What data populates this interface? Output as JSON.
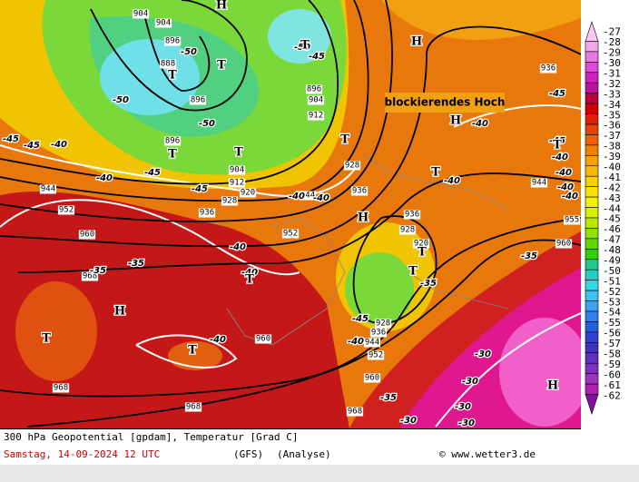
{
  "map": {
    "annotation": "blockierendes Hoch",
    "geopotential_labels": [
      904,
      904,
      896,
      888,
      896,
      896,
      904,
      912,
      920,
      928,
      936,
      944,
      952,
      960,
      968,
      968,
      968,
      960,
      952,
      944,
      936,
      928,
      920,
      928,
      936,
      928,
      936,
      944,
      952,
      960,
      968,
      960,
      955,
      944,
      936,
      896,
      904,
      912
    ],
    "temperature_labels": [
      -50,
      -50,
      -45,
      -50,
      -50,
      -45,
      -45,
      -40,
      -45,
      -40,
      -45,
      -40,
      -40,
      -40,
      -40,
      -35,
      -35,
      -40,
      -40,
      -45,
      -35,
      -35,
      -35,
      -30,
      -30,
      -30,
      -30,
      -30,
      -40,
      -40,
      -40,
      -40,
      -40,
      -45,
      -45,
      -40
    ],
    "pressure_centers": [
      "H",
      "H",
      "H",
      "H",
      "H",
      "H",
      "T",
      "T",
      "T",
      "T",
      "T",
      "T",
      "T",
      "T",
      "T",
      "T",
      "T",
      "T",
      "T"
    ]
  },
  "colorbar": {
    "labels": [
      -27,
      -28,
      -29,
      -30,
      -31,
      -32,
      -33,
      -34,
      -35,
      -36,
      -37,
      -38,
      -39,
      -40,
      -41,
      -42,
      -43,
      -44,
      -45,
      -46,
      -47,
      -48,
      -49,
      -50,
      -51,
      -52,
      -53,
      -54,
      -55,
      -56,
      -57,
      -58,
      -59,
      -60,
      -61,
      -62
    ],
    "colors": [
      "#f8c8f0",
      "#f0a8e8",
      "#e878e0",
      "#e048d8",
      "#d020c0",
      "#c010a0",
      "#b80040",
      "#d00000",
      "#e02000",
      "#e84000",
      "#f06000",
      "#f08000",
      "#f8a000",
      "#f8b800",
      "#f8d000",
      "#f8e000",
      "#f0f000",
      "#d8f000",
      "#b8e800",
      "#90e000",
      "#60d800",
      "#30d000",
      "#20c890",
      "#20d0c0",
      "#30d8e0",
      "#40c0f0",
      "#40a0f0",
      "#3080f0",
      "#2060e0",
      "#3040d0",
      "#4030c0",
      "#6030c0",
      "#8030c0",
      "#a030c0",
      "#b020b0",
      "#8010a0"
    ]
  },
  "footer": {
    "description": "300 hPa Geopotential [gpdam], Temperatur [Grad C]",
    "date": "Samstag, 14-09-2024  12 UTC",
    "model": "(GFS)",
    "run": "(Analyse)",
    "source": "© www.wetter3.de"
  }
}
